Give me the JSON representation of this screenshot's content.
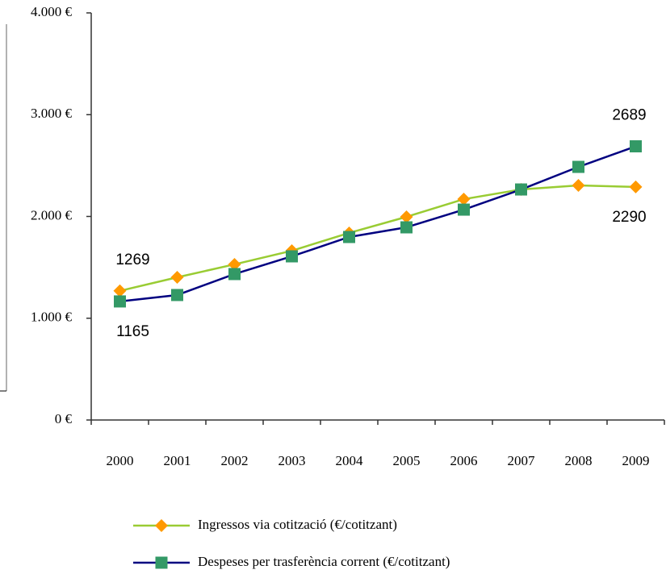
{
  "chart_data": {
    "type": "line",
    "categories": [
      "2000",
      "2001",
      "2002",
      "2003",
      "2004",
      "2005",
      "2006",
      "2007",
      "2008",
      "2009"
    ],
    "series": [
      {
        "name": "Ingressos via cotització (€/cotitzant)",
        "color": "#99cc33",
        "marker_color": "#ff9900",
        "marker": "diamond",
        "values": [
          1269,
          1402,
          1529,
          1663,
          1838,
          1996,
          2170,
          2265,
          2305,
          2290
        ]
      },
      {
        "name": "Despeses per trasferència corrent (€/cotitzant)",
        "color": "#000080",
        "marker_color": "#339966",
        "marker": "square",
        "values": [
          1165,
          1228,
          1434,
          1608,
          1798,
          1893,
          2067,
          2265,
          2487,
          2689
        ]
      }
    ],
    "ylim": [
      0,
      4000
    ],
    "yticks": [
      {
        "value": 0,
        "label": "0 €"
      },
      {
        "value": 1000,
        "label": "1.000 €"
      },
      {
        "value": 2000,
        "label": "2.000 €"
      },
      {
        "value": 3000,
        "label": "3.000 €"
      },
      {
        "value": 4000,
        "label": "4.000 €"
      }
    ],
    "grid": false
  }
}
